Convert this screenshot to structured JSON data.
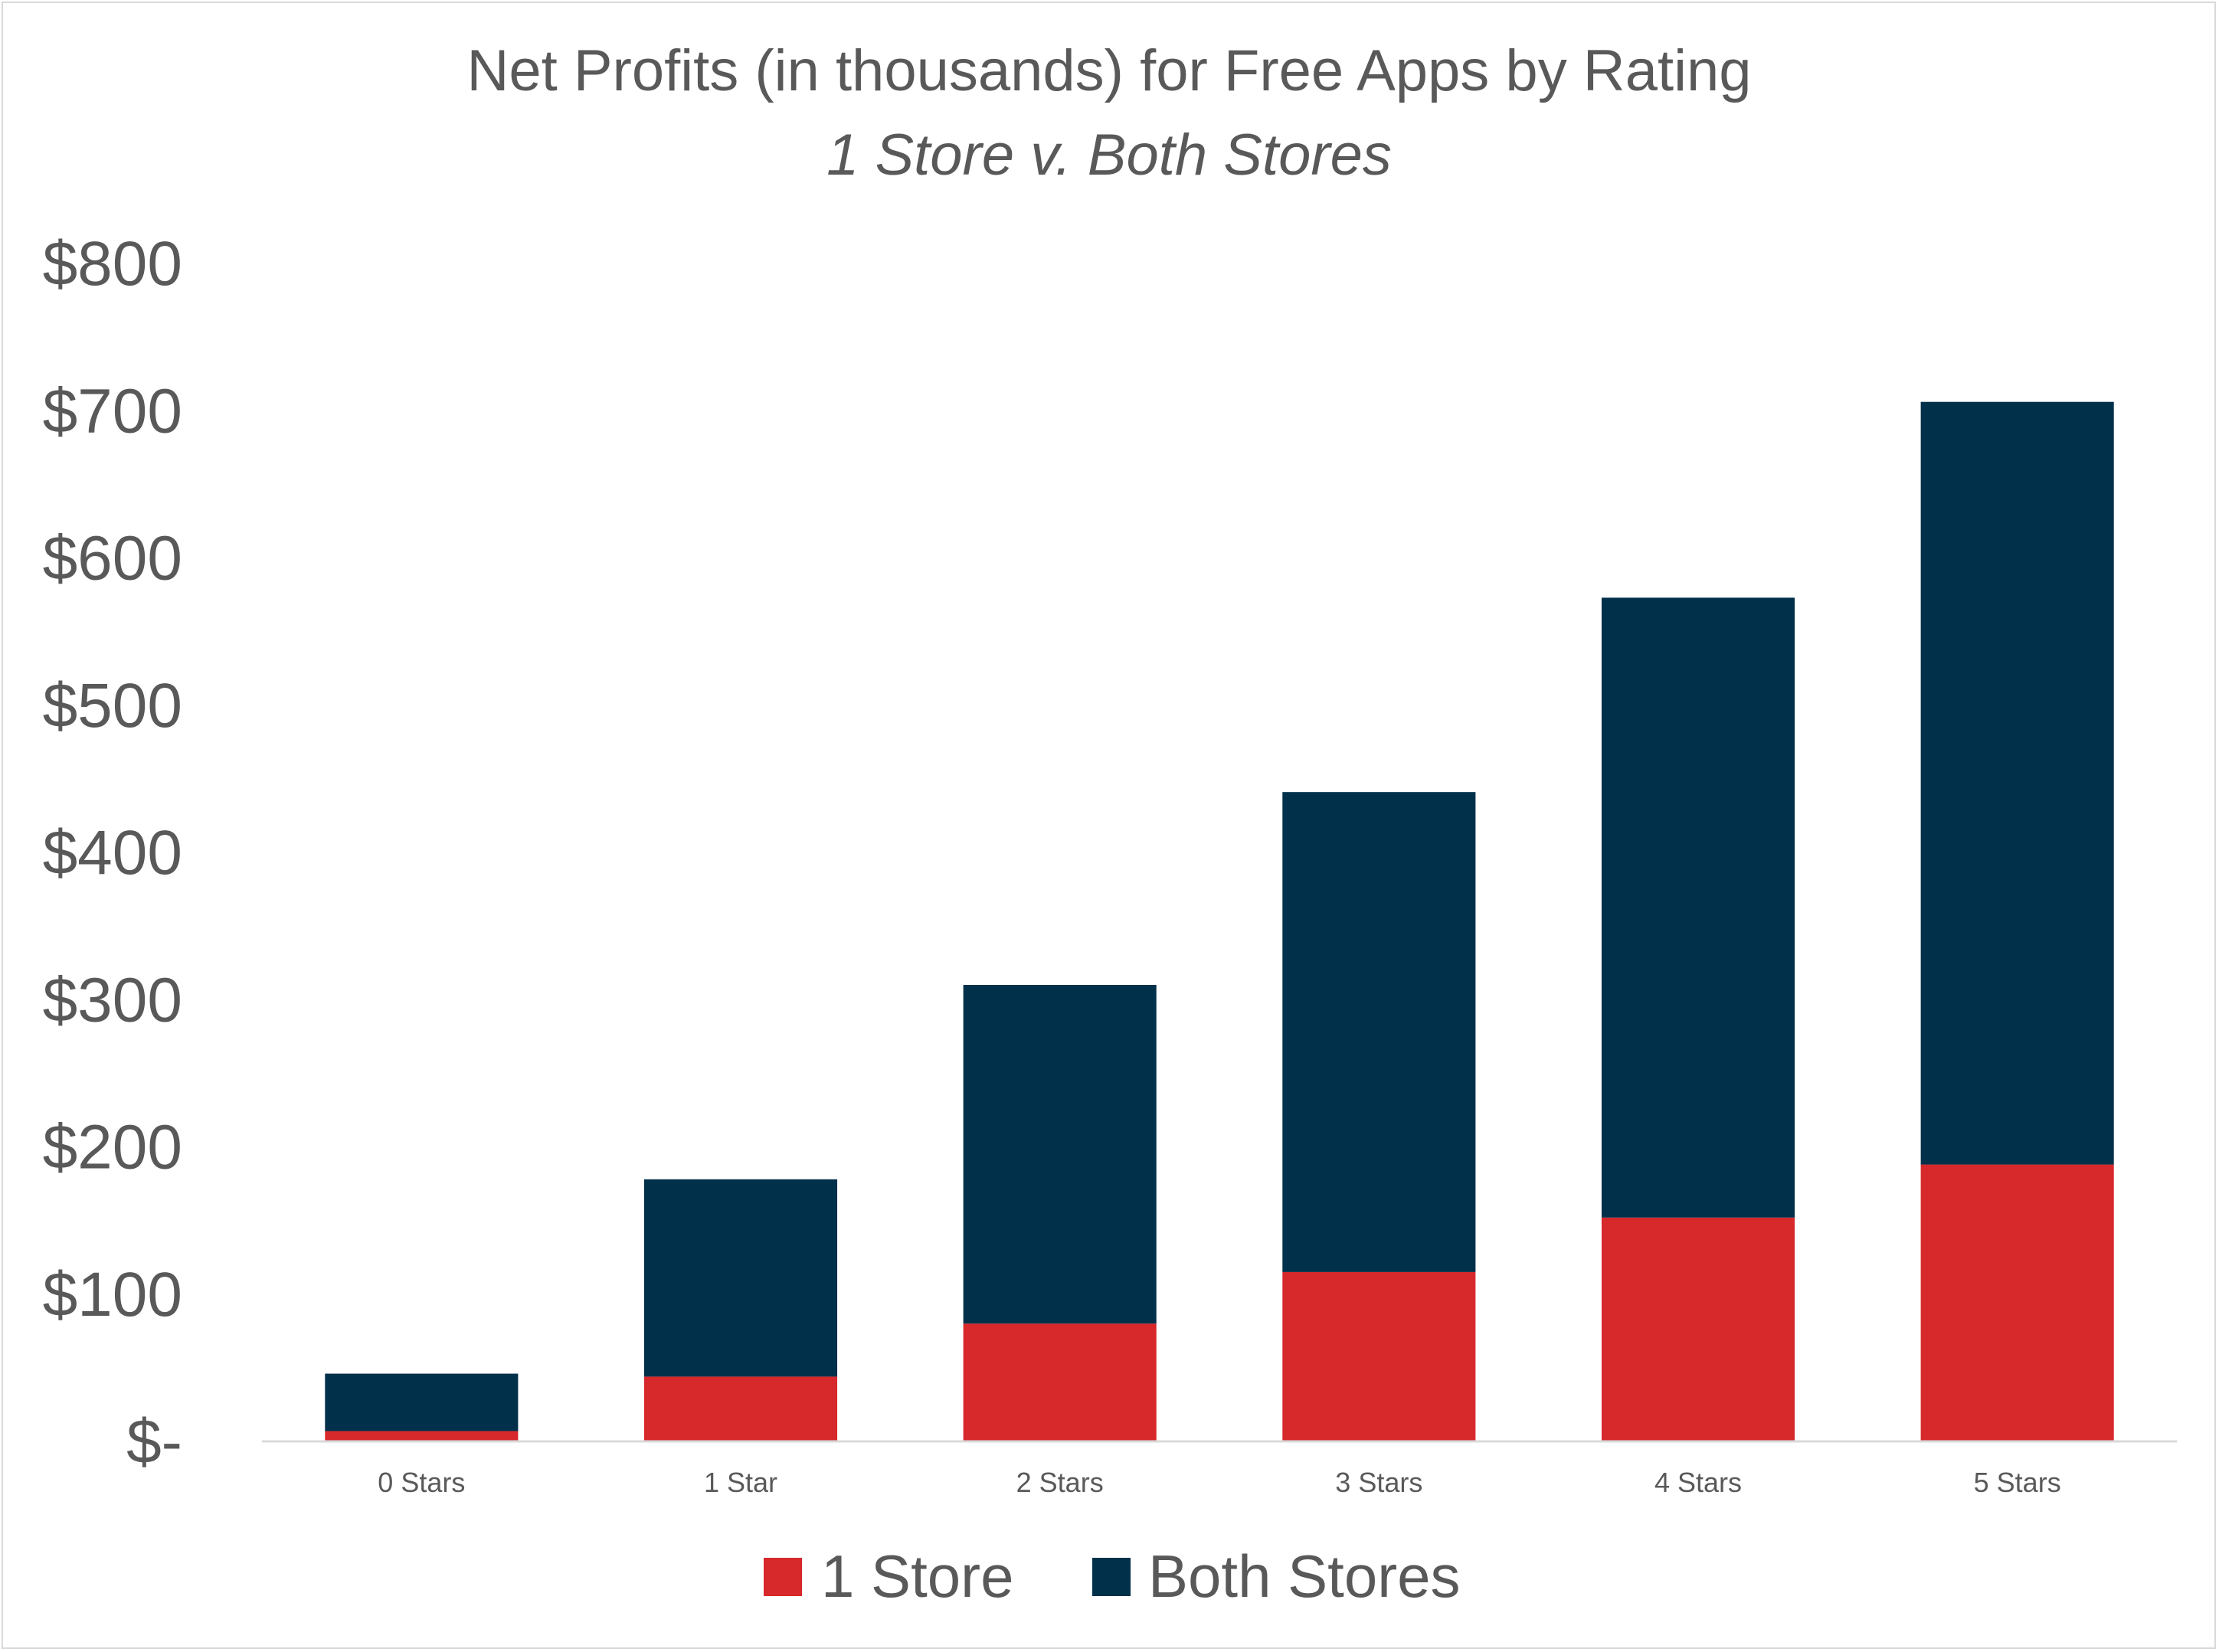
{
  "chart_data": {
    "type": "bar",
    "stacked": true,
    "title": "Net Profits (in thousands) for Free Apps by Rating",
    "subtitle": "1 Store v. Both Stores",
    "categories": [
      "0 Stars",
      "1 Star",
      "2 Stars",
      "3 Stars",
      "4 Stars",
      "5 Stars"
    ],
    "series": [
      {
        "name": "1 Store",
        "color": "#d7282b",
        "values": [
          7,
          44,
          80,
          115,
          152,
          188
        ]
      },
      {
        "name": "Both Stores",
        "color": "#01304a",
        "values": [
          39,
          134,
          230,
          326,
          421,
          518
        ]
      }
    ],
    "ylim": [
      0,
      800
    ],
    "yticks": [
      0,
      100,
      200,
      300,
      400,
      500,
      600,
      700,
      800
    ],
    "ytick_labels": [
      "$-",
      "$100",
      "$200",
      "$300",
      "$400",
      "$500",
      "$600",
      "$700",
      "$800"
    ],
    "grid": false,
    "legend": "bottom"
  }
}
